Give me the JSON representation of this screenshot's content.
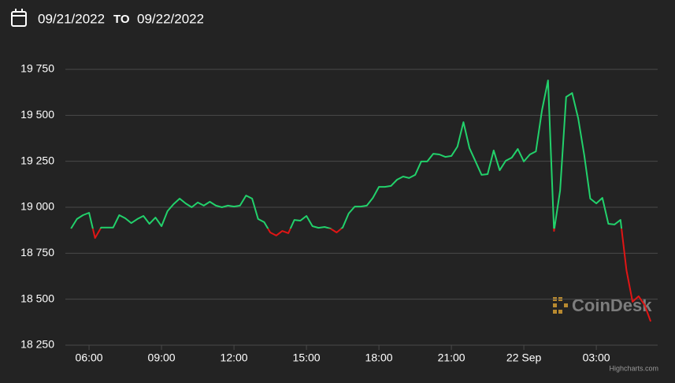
{
  "header": {
    "from": "09/21/2022",
    "to_label": "TO",
    "to": "09/22/2022"
  },
  "chart_data": {
    "type": "line",
    "x": [
      5.25,
      5.5,
      5.75,
      6,
      6.25,
      6.5,
      6.75,
      7,
      7.25,
      7.5,
      7.75,
      8,
      8.25,
      8.5,
      8.75,
      9,
      9.25,
      9.5,
      9.75,
      10,
      10.25,
      10.5,
      10.75,
      11,
      11.25,
      11.5,
      11.75,
      12,
      12.25,
      12.5,
      12.75,
      13,
      13.25,
      13.5,
      13.75,
      14,
      14.25,
      14.5,
      14.75,
      15,
      15.25,
      15.5,
      15.75,
      16,
      16.25,
      16.5,
      16.75,
      17,
      17.25,
      17.5,
      17.75,
      18,
      18.25,
      18.5,
      18.75,
      19,
      19.25,
      19.5,
      19.75,
      20,
      20.25,
      20.5,
      20.75,
      21,
      21.25,
      21.5,
      21.75,
      22,
      22.25,
      22.5,
      22.75,
      23,
      23.25,
      23.5,
      23.75,
      24,
      24.25,
      24.5,
      24.75,
      25,
      25.25,
      25.5,
      25.75,
      26,
      26.25,
      26.5,
      26.75,
      27,
      27.25,
      27.5,
      27.75,
      28,
      28.25,
      28.5,
      28.75,
      29,
      29.25
    ],
    "series": [
      {
        "color": "#22d16b",
        "down_color": "#e01515",
        "values": [
          18884,
          18936,
          18957,
          18970,
          18833,
          18890,
          18890,
          18890,
          18957,
          18940,
          18914,
          18936,
          18953,
          18910,
          18944,
          18897,
          18979,
          19017,
          19047,
          19021,
          19000,
          19026,
          19009,
          19030,
          19009,
          19000,
          19009,
          19004,
          19009,
          19064,
          19047,
          18936,
          18919,
          18863,
          18846,
          18871,
          18859,
          18931,
          18927,
          18953,
          18897,
          18888,
          18893,
          18884,
          18863,
          18890,
          18966,
          19004,
          19004,
          19009,
          19051,
          19111,
          19111,
          19116,
          19150,
          19167,
          19159,
          19176,
          19249,
          19249,
          19291,
          19287,
          19274,
          19279,
          19330,
          19463,
          19321,
          19249,
          19176,
          19180,
          19309,
          19201,
          19253,
          19270,
          19317,
          19249,
          19287,
          19304,
          19527,
          19690,
          18871,
          19090,
          19600,
          19621,
          19484,
          19283,
          19047,
          19021,
          19051,
          18910,
          18906,
          18931,
          18657,
          18486,
          18516,
          18469,
          18379
        ]
      }
    ],
    "xlim": [
      5.02,
      29.54
    ],
    "xticks": [
      {
        "value": 6,
        "label": "06:00"
      },
      {
        "value": 9,
        "label": "09:00"
      },
      {
        "value": 12,
        "label": "12:00"
      },
      {
        "value": 15,
        "label": "15:00"
      },
      {
        "value": 18,
        "label": "18:00"
      },
      {
        "value": 21,
        "label": "21:00"
      },
      {
        "value": 24,
        "label": "22 Sep"
      },
      {
        "value": 27,
        "label": "03:00"
      }
    ],
    "ylim": [
      18250,
      19750
    ],
    "yticks": [
      {
        "value": 18250,
        "label": "18 250"
      },
      {
        "value": 18500,
        "label": "18 500"
      },
      {
        "value": 18750,
        "label": "18 750"
      },
      {
        "value": 19000,
        "label": "19 000"
      },
      {
        "value": 19250,
        "label": "19 250"
      },
      {
        "value": 19500,
        "label": "19 500"
      },
      {
        "value": 19750,
        "label": "19 750"
      }
    ],
    "grid": true,
    "watermark": "CoinDesk",
    "credit": "Highcharts.com"
  }
}
